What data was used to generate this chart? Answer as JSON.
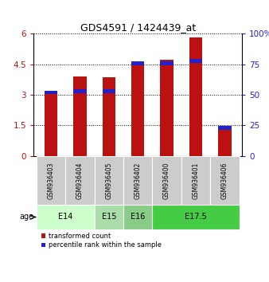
{
  "title": "GDS4591 / 1424439_at",
  "samples": [
    "GSM936403",
    "GSM936404",
    "GSM936405",
    "GSM936402",
    "GSM936400",
    "GSM936401",
    "GSM936406"
  ],
  "red_values": [
    3.22,
    3.9,
    3.85,
    4.65,
    4.72,
    5.82,
    1.35
  ],
  "blue_values_pct": [
    52,
    53,
    53,
    76,
    76,
    78,
    23
  ],
  "ylim_left": [
    0,
    6
  ],
  "ylim_right": [
    0,
    100
  ],
  "yticks_left": [
    0,
    1.5,
    3,
    4.5,
    6
  ],
  "yticks_right": [
    0,
    25,
    50,
    75,
    100
  ],
  "ytick_labels_left": [
    "0",
    "1.5",
    "3",
    "4.5",
    "6"
  ],
  "ytick_labels_right": [
    "0",
    "25",
    "50",
    "75",
    "100%"
  ],
  "age_groups": [
    {
      "label": "E14",
      "start": 0,
      "end": 2,
      "color": "#ccffcc"
    },
    {
      "label": "E15",
      "start": 2,
      "end": 3,
      "color": "#aaddaa"
    },
    {
      "label": "E16",
      "start": 3,
      "end": 4,
      "color": "#88cc88"
    },
    {
      "label": "E17.5",
      "start": 4,
      "end": 7,
      "color": "#44cc44"
    }
  ],
  "bar_color_red": "#bb1111",
  "bar_color_blue": "#2222cc",
  "bar_width": 0.45,
  "sample_bg_color": "#cccccc",
  "legend_red": "transformed count",
  "legend_blue": "percentile rank within the sample",
  "age_label": "age"
}
